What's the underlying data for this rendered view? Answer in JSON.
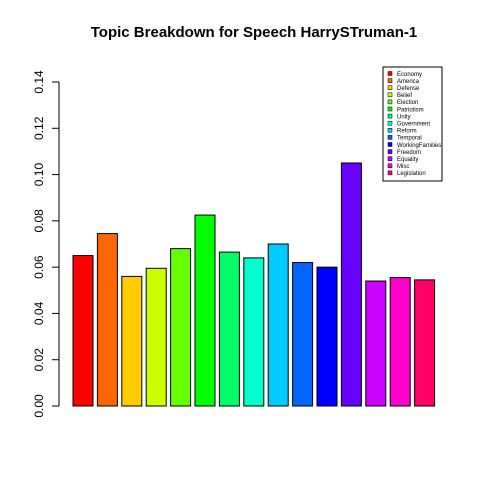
{
  "chart_data": {
    "type": "bar",
    "title": "Topic Breakdown for Speech HarrySTruman-1",
    "xlabel": "",
    "ylabel": "",
    "ylim": [
      0,
      0.14
    ],
    "yticks": [
      0.0,
      0.02,
      0.04,
      0.06,
      0.08,
      0.1,
      0.12,
      0.14
    ],
    "ytick_labels": [
      "0.00",
      "0.02",
      "0.04",
      "0.06",
      "0.08",
      "0.10",
      "0.12",
      "0.14"
    ],
    "grid": false,
    "legend_position": "top-right",
    "categories": [
      "Economy",
      "America",
      "Defense",
      "Belief",
      "Election",
      "Patriotism",
      "Unity",
      "Government",
      "Reform",
      "Temporal",
      "WorkingFamilies",
      "Freedom",
      "Equality",
      "Misc",
      "Legislation"
    ],
    "values": [
      0.065,
      0.0745,
      0.056,
      0.0595,
      0.068,
      0.0825,
      0.0665,
      0.064,
      0.07,
      0.062,
      0.06,
      0.105,
      0.054,
      0.0555,
      0.0545
    ],
    "colors": [
      "#FF0000",
      "#FF6600",
      "#FFCC00",
      "#CCFF00",
      "#66FF00",
      "#00FF00",
      "#00FF66",
      "#00FFCC",
      "#00CCFF",
      "#0066FF",
      "#0000FF",
      "#6600FF",
      "#CC00FF",
      "#FF00CC",
      "#FF0066"
    ]
  }
}
